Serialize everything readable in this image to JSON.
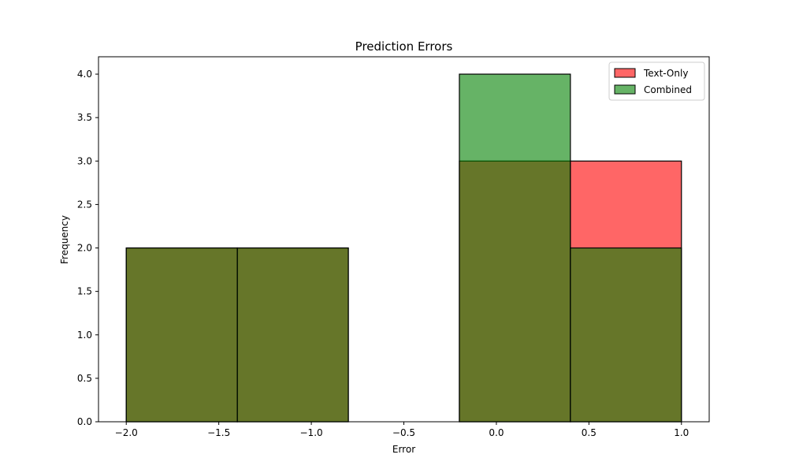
{
  "chart_data": {
    "type": "bar",
    "title": "Prediction Errors",
    "xlabel": "Error",
    "ylabel": "Frequency",
    "xlim": [
      -2.15,
      1.15
    ],
    "ylim": [
      0,
      4.2
    ],
    "x_ticks": [
      -2.0,
      -1.5,
      -1.0,
      -0.5,
      0.0,
      0.5,
      1.0
    ],
    "x_tick_labels": [
      "−2.0",
      "−1.5",
      "−1.0",
      "−0.5",
      "0.0",
      "0.5",
      "1.0"
    ],
    "y_ticks": [
      0.0,
      0.5,
      1.0,
      1.5,
      2.0,
      2.5,
      3.0,
      3.5,
      4.0
    ],
    "y_tick_labels": [
      "0.0",
      "0.5",
      "1.0",
      "1.5",
      "2.0",
      "2.5",
      "3.0",
      "3.5",
      "4.0"
    ],
    "bin_edges": [
      -2.0,
      -1.4,
      -0.8,
      -0.2,
      0.4,
      1.0
    ],
    "grid": false,
    "legend_position": "top-right",
    "series": [
      {
        "name": "Text-Only",
        "color": "#ff0000",
        "alpha": 0.6,
        "values": [
          2,
          2,
          0,
          3,
          3
        ]
      },
      {
        "name": "Combined",
        "color": "#008000",
        "alpha": 0.6,
        "values": [
          2,
          2,
          0,
          4,
          2
        ]
      }
    ]
  }
}
